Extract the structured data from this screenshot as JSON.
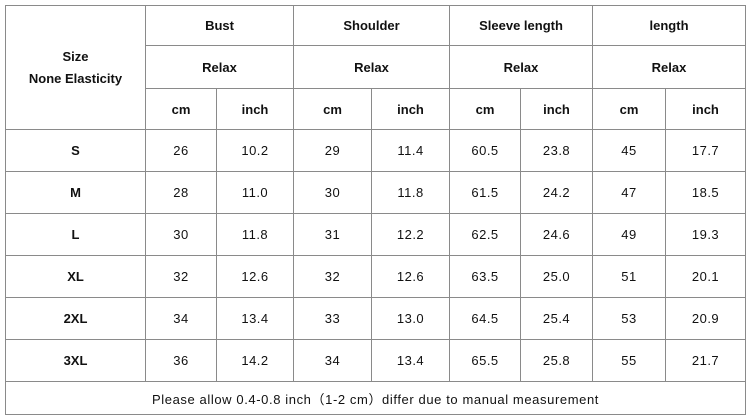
{
  "table": {
    "corner": [
      "Size",
      "None Elasticity"
    ],
    "groups": [
      {
        "name": "Bust",
        "fit": "Relax",
        "units": [
          "cm",
          "inch"
        ]
      },
      {
        "name": "Shoulder",
        "fit": "Relax",
        "units": [
          "cm",
          "inch"
        ]
      },
      {
        "name": "Sleeve length",
        "fit": "Relax",
        "units": [
          "cm",
          "inch"
        ]
      },
      {
        "name": "length",
        "fit": "Relax",
        "units": [
          "cm",
          "inch"
        ]
      }
    ],
    "rows": [
      {
        "size": "S",
        "values": [
          "26",
          "10.2",
          "29",
          "11.4",
          "60.5",
          "23.8",
          "45",
          "17.7"
        ]
      },
      {
        "size": "M",
        "values": [
          "28",
          "11.0",
          "30",
          "11.8",
          "61.5",
          "24.2",
          "47",
          "18.5"
        ]
      },
      {
        "size": "L",
        "values": [
          "30",
          "11.8",
          "31",
          "12.2",
          "62.5",
          "24.6",
          "49",
          "19.3"
        ]
      },
      {
        "size": "XL",
        "values": [
          "32",
          "12.6",
          "32",
          "12.6",
          "63.5",
          "25.0",
          "51",
          "20.1"
        ]
      },
      {
        "size": "2XL",
        "values": [
          "34",
          "13.4",
          "33",
          "13.0",
          "64.5",
          "25.4",
          "53",
          "20.9"
        ]
      },
      {
        "size": "3XL",
        "values": [
          "36",
          "14.2",
          "34",
          "13.4",
          "65.5",
          "25.8",
          "55",
          "21.7"
        ]
      }
    ],
    "note": "Please allow 0.4-0.8 inch（1-2 cm）differ due to manual measurement"
  }
}
